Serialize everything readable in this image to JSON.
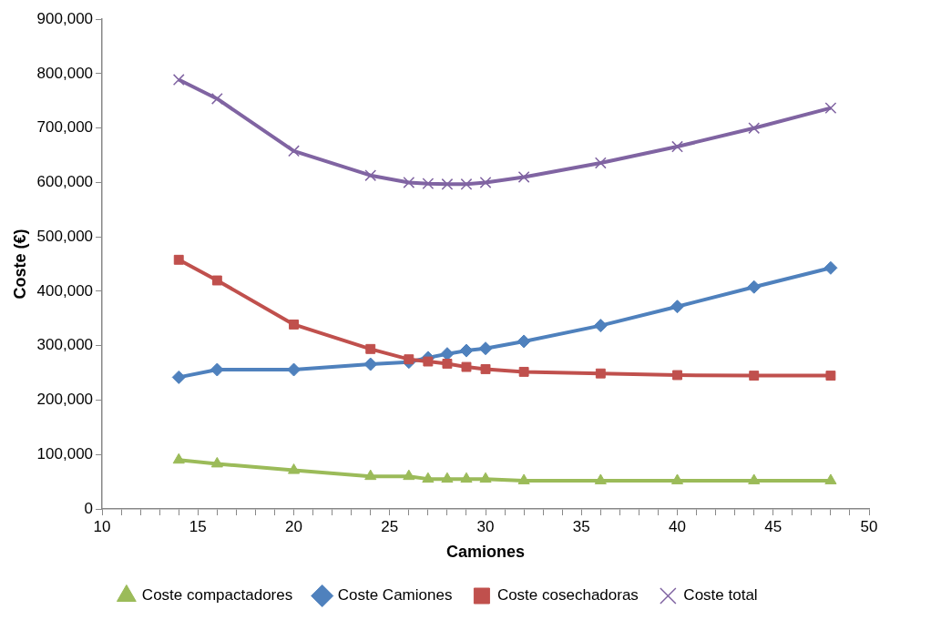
{
  "chart_data": {
    "type": "line",
    "xlabel": "Camiones",
    "ylabel": "Coste (€)",
    "x": [
      14,
      16,
      20,
      24,
      26,
      27,
      28,
      29,
      30,
      32,
      36,
      40,
      44,
      48
    ],
    "series": [
      {
        "name": "Coste compactadores",
        "color": "#9bbb59",
        "marker": "triangle",
        "values": [
          90000,
          83000,
          71000,
          60000,
          60000,
          55000,
          55000,
          55000,
          55000,
          52000,
          52000,
          52000,
          52000,
          52000
        ]
      },
      {
        "name": "Coste Camiones",
        "color": "#4f81bd",
        "marker": "diamond",
        "values": [
          242000,
          256000,
          256000,
          266000,
          270000,
          278000,
          285000,
          291000,
          295000,
          308000,
          337000,
          372000,
          408000,
          443000
        ]
      },
      {
        "name": "Coste cosechadoras",
        "color": "#c0504d",
        "marker": "square",
        "values": [
          458000,
          420000,
          339000,
          294000,
          275000,
          271000,
          267000,
          261000,
          257000,
          252000,
          249000,
          246000,
          245000,
          245000
        ]
      },
      {
        "name": "Coste total",
        "color": "#8064a2",
        "marker": "cross",
        "values": [
          789000,
          754000,
          658000,
          613000,
          600000,
          598000,
          597000,
          597000,
          600000,
          610000,
          636000,
          666000,
          700000,
          737000
        ]
      }
    ],
    "xlim": [
      10,
      50
    ],
    "xticks": [
      10,
      {
        "value": 11,
        "label": null
      },
      {
        "value": 12,
        "label": null
      },
      {
        "value": 13,
        "label": null
      },
      {
        "value": 14,
        "label": null
      },
      15,
      {
        "value": 16,
        "label": null
      },
      {
        "value": 17,
        "label": null
      },
      {
        "value": 18,
        "label": null
      },
      {
        "value": 19,
        "label": null
      },
      20,
      {
        "value": 21,
        "label": null
      },
      {
        "value": 22,
        "label": null
      },
      {
        "value": 23,
        "label": null
      },
      {
        "value": 24,
        "label": null
      },
      25,
      {
        "value": 26,
        "label": null
      },
      {
        "value": 27,
        "label": null
      },
      {
        "value": 28,
        "label": null
      },
      {
        "value": 29,
        "label": null
      },
      30,
      {
        "value": 31,
        "label": null
      },
      {
        "value": 32,
        "label": null
      },
      {
        "value": 33,
        "label": null
      },
      {
        "value": 34,
        "label": null
      },
      35,
      {
        "value": 36,
        "label": null
      },
      {
        "value": 37,
        "label": null
      },
      {
        "value": 38,
        "label": null
      },
      {
        "value": 39,
        "label": null
      },
      40,
      {
        "value": 41,
        "label": null
      },
      {
        "value": 42,
        "label": null
      },
      {
        "value": 43,
        "label": null
      },
      {
        "value": 44,
        "label": null
      },
      45,
      {
        "value": 46,
        "label": null
      },
      {
        "value": 47,
        "label": null
      },
      {
        "value": 48,
        "label": null
      },
      {
        "value": 49,
        "label": null
      },
      50
    ],
    "ylim": [
      0,
      900000
    ],
    "yticks": [
      {
        "value": 0,
        "label": "0"
      },
      {
        "value": 100000,
        "label": "100,000"
      },
      {
        "value": 200000,
        "label": "200,000"
      },
      {
        "value": 300000,
        "label": "300,000"
      },
      {
        "value": 400000,
        "label": "400,000"
      },
      {
        "value": 500000,
        "label": "500,000"
      },
      {
        "value": 600000,
        "label": "600,000"
      },
      {
        "value": 700000,
        "label": "700,000"
      },
      {
        "value": 800000,
        "label": "800,000"
      },
      {
        "value": 900000,
        "label": "900,000"
      }
    ],
    "grid": false,
    "legend": "bottom",
    "line_style": "solid"
  }
}
